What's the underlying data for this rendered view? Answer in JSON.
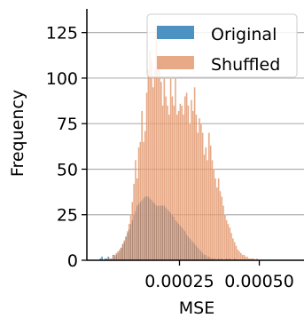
{
  "chart_data": {
    "type": "histogram",
    "title": "",
    "xlabel": "MSE",
    "ylabel": "Frequency",
    "xlim": [
      -4e-05,
      0.00064
    ],
    "ylim": [
      0,
      138
    ],
    "x_ticks": [
      0.00025,
      0.0005
    ],
    "x_tick_labels": [
      "0.00025",
      "0.00050"
    ],
    "y_ticks": [
      0,
      25,
      50,
      75,
      100,
      125
    ],
    "y_tick_labels": [
      "0",
      "25",
      "50",
      "75",
      "100",
      "125"
    ],
    "grid": "horizontal",
    "legend_position": "top-right",
    "bin_width": 5e-06,
    "series": [
      {
        "name": "Original",
        "color": "#1f77b4",
        "alpha": 0.8,
        "bins_start": 0.0,
        "counts": [
          1,
          2,
          0,
          1,
          1,
          2,
          1,
          1,
          3,
          2,
          3,
          4,
          5,
          7,
          9,
          10,
          13,
          15,
          17,
          20,
          22,
          25,
          27,
          30,
          31,
          32,
          33,
          34,
          35,
          35,
          35,
          34,
          33,
          32,
          31,
          30,
          30,
          30,
          30,
          30,
          30,
          29,
          28,
          27,
          26,
          25,
          24,
          22,
          21,
          20,
          19,
          18,
          17,
          16,
          14,
          13,
          12,
          11,
          10,
          9,
          8,
          7,
          6,
          5,
          4,
          3,
          3,
          2,
          2,
          1,
          1,
          1,
          1,
          0,
          1,
          0,
          1,
          0,
          0,
          1,
          0,
          1,
          0,
          0,
          1,
          0,
          0,
          0,
          0,
          0,
          0,
          0,
          0,
          0,
          0,
          0,
          0,
          0,
          0,
          0,
          0,
          0,
          0,
          0,
          0,
          0,
          0,
          0,
          0,
          0,
          0,
          0,
          0,
          0,
          0,
          0,
          0,
          0,
          0,
          0,
          0,
          0,
          0,
          0
        ]
      },
      {
        "name": "Shuffled",
        "color": "#dd8452",
        "alpha": 0.7,
        "bins_start": 0.0,
        "counts": [
          0,
          0,
          0,
          0,
          1,
          1,
          1,
          1,
          2,
          3,
          4,
          5,
          6,
          7,
          9,
          11,
          13,
          16,
          20,
          25,
          32,
          42,
          55,
          45,
          62,
          65,
          82,
          65,
          71,
          92,
          105,
          115,
          110,
          95,
          105,
          128,
          105,
          110,
          98,
          85,
          100,
          90,
          85,
          80,
          100,
          90,
          85,
          100,
          80,
          82,
          86,
          85,
          80,
          90,
          92,
          85,
          75,
          88,
          82,
          95,
          80,
          70,
          78,
          75,
          70,
          58,
          62,
          55,
          70,
          63,
          55,
          50,
          45,
          40,
          45,
          38,
          35,
          30,
          25,
          22,
          20,
          18,
          15,
          12,
          10,
          8,
          6,
          5,
          4,
          3,
          3,
          2,
          2,
          1,
          1,
          1,
          1,
          0,
          1,
          0,
          0,
          0,
          0,
          0,
          0,
          0,
          0,
          0,
          0,
          0,
          0,
          0,
          0,
          0,
          0,
          0,
          0,
          0,
          0,
          0
        ]
      }
    ]
  }
}
